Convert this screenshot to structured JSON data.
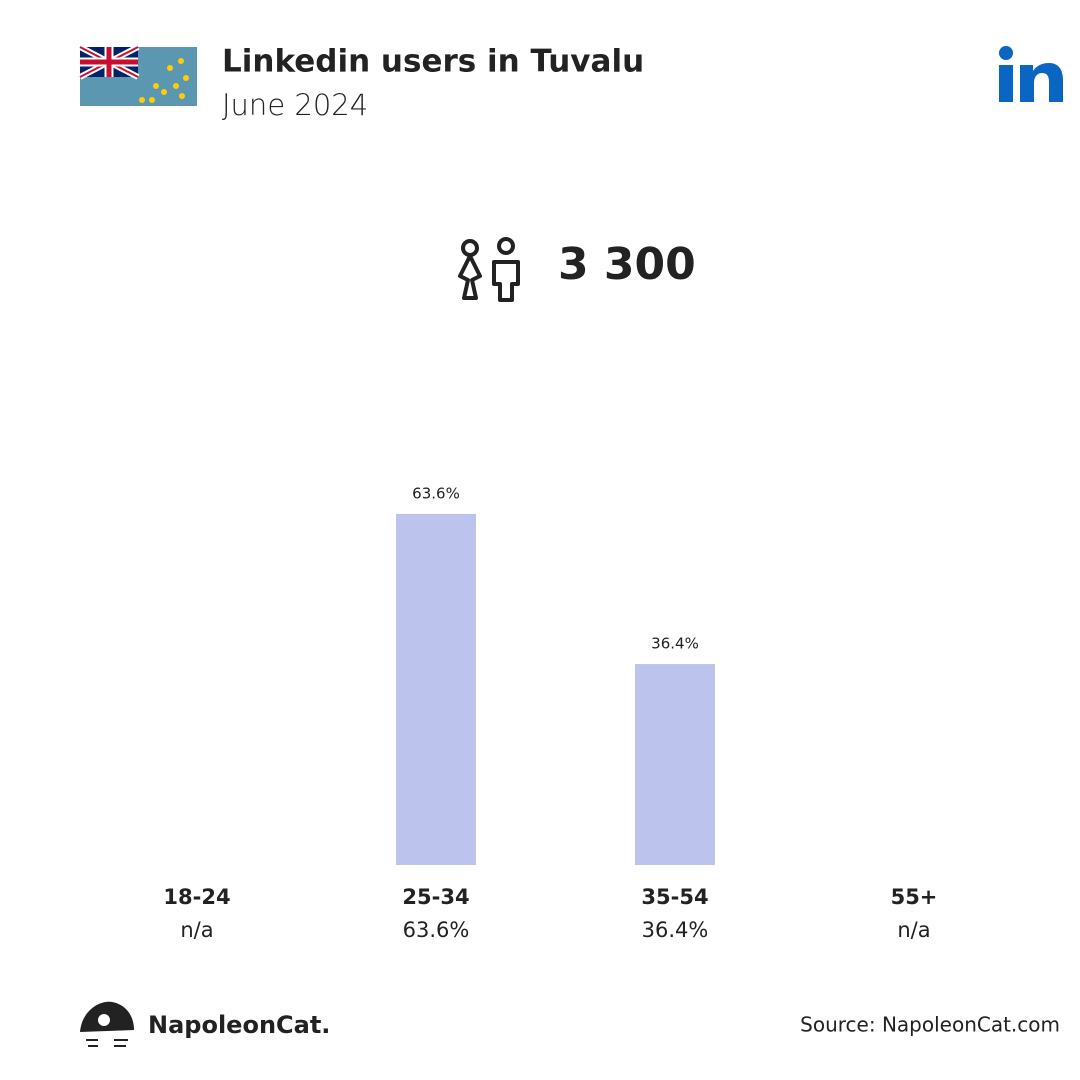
{
  "chart_data": {
    "type": "bar",
    "title": "Linkedin users in Tuvalu",
    "subtitle": "June 2024",
    "total_users": "3 300",
    "categories": [
      "18-24",
      "25-34",
      "35-54",
      "55+"
    ],
    "values": [
      null,
      63.6,
      36.4,
      null
    ],
    "value_labels": [
      "n/a",
      "63.6%",
      "36.4%",
      "n/a"
    ],
    "color": "#bcc3ec",
    "source": "Source: NapoleonCat.com",
    "brand": "NapoleonCat."
  }
}
